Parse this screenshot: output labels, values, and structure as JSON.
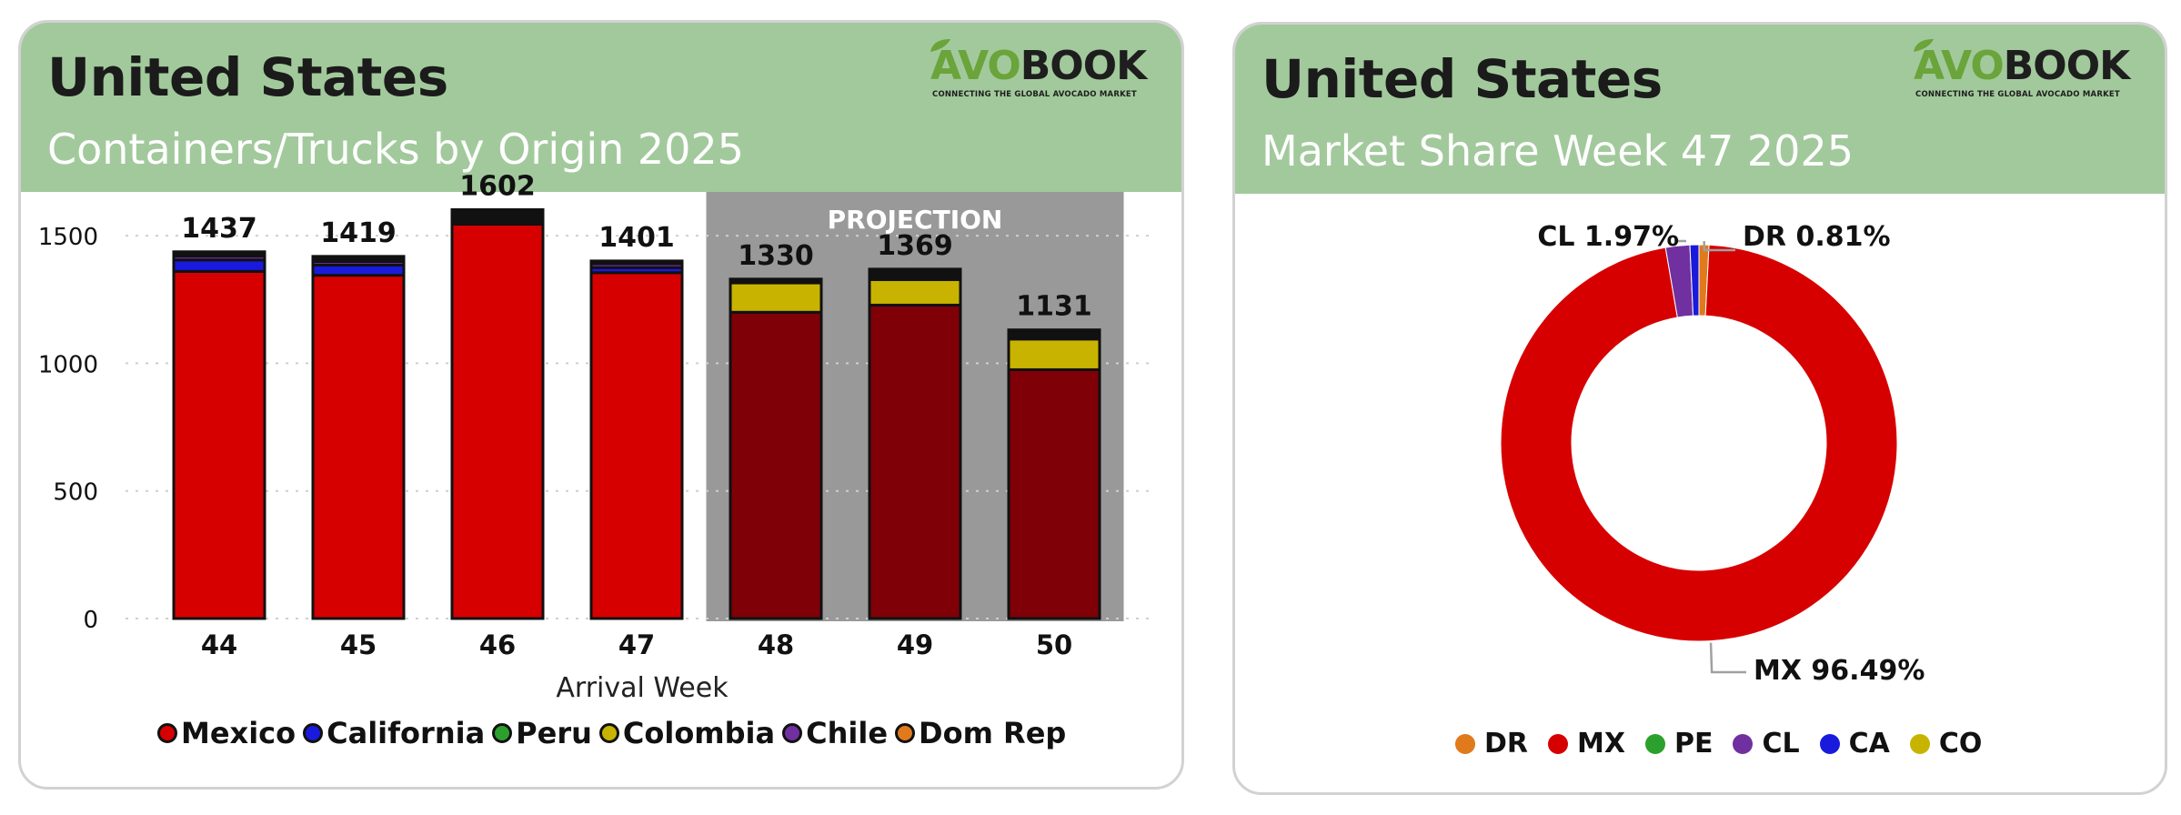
{
  "panels": {
    "left": {
      "country": "United States",
      "subtitle": "Containers/Trucks by Origin 2025",
      "projection_label": "PROJECTION"
    },
    "right": {
      "country": "United States",
      "subtitle": "Market Share Week 47 2025"
    }
  },
  "logo": {
    "part1": "AVO",
    "part2": "BOOK",
    "tagline": "CONNECTING THE GLOBAL AVOCADO MARKET"
  },
  "colors": {
    "header_bg": "#a2c99c",
    "projection_bg": "#999999",
    "projected_mexico": "#800008"
  },
  "chart_data": [
    {
      "type": "bar",
      "stacked": true,
      "xlabel": "Arrival Week",
      "ylabel": "",
      "ylim": [
        0,
        1700
      ],
      "yticks": [
        0,
        500,
        1000,
        1500
      ],
      "grid": true,
      "legend_position": "bottom",
      "categories": [
        "44",
        "45",
        "46",
        "47",
        "48",
        "49",
        "50"
      ],
      "projected_categories": [
        "48",
        "49",
        "50"
      ],
      "totals": [
        1437,
        1419,
        1602,
        1401,
        1330,
        1369,
        1131
      ],
      "series": [
        {
          "name": "Mexico",
          "color": "#d70000",
          "values": [
            1360,
            1345,
            1545,
            1355,
            1200,
            1228,
            975
          ]
        },
        {
          "name": "California",
          "color": "#1a1adc",
          "values": [
            45,
            40,
            0,
            20,
            0,
            0,
            0
          ]
        },
        {
          "name": "Peru",
          "color": "#2ca02c",
          "values": [
            0,
            0,
            0,
            0,
            0,
            0,
            0
          ]
        },
        {
          "name": "Colombia",
          "color": "#c8b400",
          "values": [
            0,
            0,
            0,
            0,
            115,
            100,
            120
          ]
        },
        {
          "name": "Chile",
          "color": "#7030a0",
          "values": [
            15,
            14,
            0,
            15,
            0,
            0,
            0
          ]
        },
        {
          "name": "Dom Rep",
          "color": "#e07a1c",
          "values": [
            17,
            20,
            57,
            11,
            15,
            41,
            36
          ]
        }
      ]
    },
    {
      "type": "pie",
      "donut": true,
      "legend_position": "bottom",
      "slices": [
        {
          "name": "DR",
          "value": 0.81,
          "label": "DR 0.81%",
          "color": "#e07a1c"
        },
        {
          "name": "MX",
          "value": 96.49,
          "label": "MX 96.49%",
          "color": "#d70000"
        },
        {
          "name": "PE",
          "value": 0.0,
          "label": "",
          "color": "#2ca02c"
        },
        {
          "name": "CL",
          "value": 1.97,
          "label": "CL 1.97%",
          "color": "#7030a0"
        },
        {
          "name": "CA",
          "value": 0.73,
          "label": "",
          "color": "#1a1adc"
        },
        {
          "name": "CO",
          "value": 0.0,
          "label": "",
          "color": "#c8b400"
        }
      ]
    }
  ]
}
